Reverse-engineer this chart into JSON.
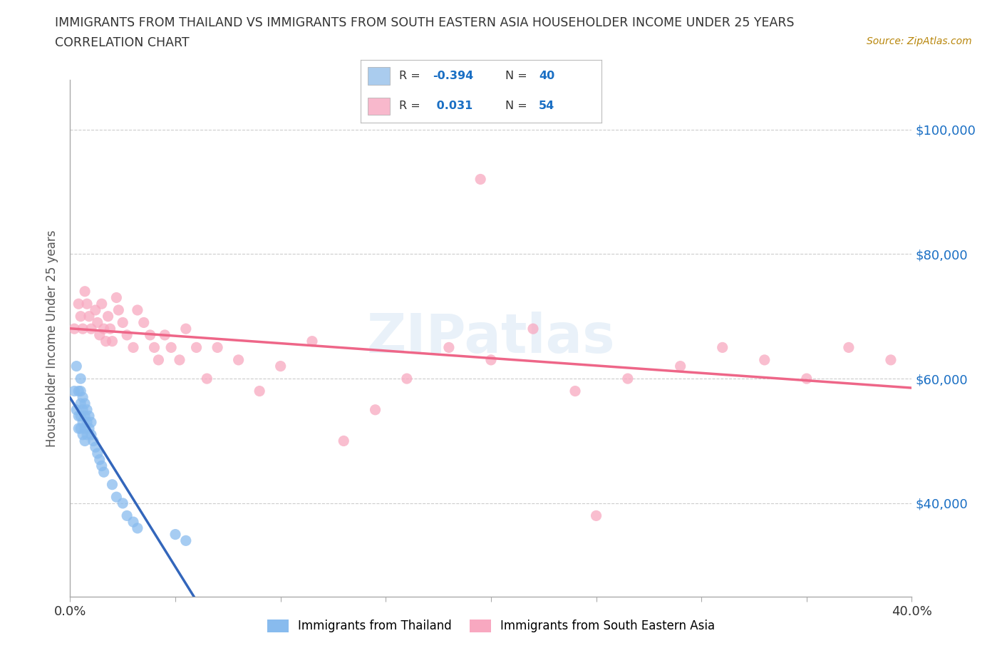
{
  "title_line1": "IMMIGRANTS FROM THAILAND VS IMMIGRANTS FROM SOUTH EASTERN ASIA HOUSEHOLDER INCOME UNDER 25 YEARS",
  "title_line2": "CORRELATION CHART",
  "source": "Source: ZipAtlas.com",
  "ylabel": "Householder Income Under 25 years",
  "yticks": [
    40000,
    60000,
    80000,
    100000
  ],
  "ytick_labels": [
    "$40,000",
    "$60,000",
    "$80,000",
    "$100,000"
  ],
  "xmin": 0.0,
  "xmax": 0.4,
  "ymin": 25000,
  "ymax": 108000,
  "watermark": "ZIPatlas",
  "thailand_color": "#88bbee",
  "sea_color": "#f8a8c0",
  "thailand_line_color": "#3366bb",
  "sea_line_color": "#ee6688",
  "legend_blue_color": "#aaccee",
  "legend_pink_color": "#f8b8cc",
  "thailand_x": [
    0.002,
    0.003,
    0.003,
    0.004,
    0.004,
    0.004,
    0.005,
    0.005,
    0.005,
    0.005,
    0.005,
    0.006,
    0.006,
    0.006,
    0.006,
    0.007,
    0.007,
    0.007,
    0.007,
    0.008,
    0.008,
    0.008,
    0.009,
    0.009,
    0.01,
    0.01,
    0.011,
    0.012,
    0.013,
    0.014,
    0.015,
    0.016,
    0.02,
    0.022,
    0.025,
    0.027,
    0.03,
    0.032,
    0.05,
    0.055
  ],
  "thailand_y": [
    58000,
    62000,
    55000,
    58000,
    54000,
    52000,
    60000,
    58000,
    56000,
    54000,
    52000,
    57000,
    55000,
    53000,
    51000,
    56000,
    54000,
    52000,
    50000,
    55000,
    53000,
    51000,
    54000,
    52000,
    53000,
    51000,
    50000,
    49000,
    48000,
    47000,
    46000,
    45000,
    43000,
    41000,
    40000,
    38000,
    37000,
    36000,
    35000,
    34000
  ],
  "sea_x": [
    0.002,
    0.004,
    0.005,
    0.006,
    0.007,
    0.008,
    0.009,
    0.01,
    0.012,
    0.013,
    0.014,
    0.015,
    0.016,
    0.017,
    0.018,
    0.019,
    0.02,
    0.022,
    0.023,
    0.025,
    0.027,
    0.03,
    0.032,
    0.035,
    0.038,
    0.04,
    0.042,
    0.045,
    0.048,
    0.052,
    0.055,
    0.06,
    0.065,
    0.07,
    0.08,
    0.09,
    0.1,
    0.115,
    0.13,
    0.145,
    0.16,
    0.18,
    0.2,
    0.22,
    0.24,
    0.265,
    0.29,
    0.31,
    0.33,
    0.35,
    0.37,
    0.39,
    0.195,
    0.25
  ],
  "sea_y": [
    68000,
    72000,
    70000,
    68000,
    74000,
    72000,
    70000,
    68000,
    71000,
    69000,
    67000,
    72000,
    68000,
    66000,
    70000,
    68000,
    66000,
    73000,
    71000,
    69000,
    67000,
    65000,
    71000,
    69000,
    67000,
    65000,
    63000,
    67000,
    65000,
    63000,
    68000,
    65000,
    60000,
    65000,
    63000,
    58000,
    62000,
    66000,
    50000,
    55000,
    60000,
    65000,
    63000,
    68000,
    58000,
    60000,
    62000,
    65000,
    63000,
    60000,
    65000,
    63000,
    92000,
    38000
  ],
  "xtick_positions": [
    0.0,
    0.05,
    0.1,
    0.15,
    0.2,
    0.25,
    0.3,
    0.35,
    0.4
  ]
}
